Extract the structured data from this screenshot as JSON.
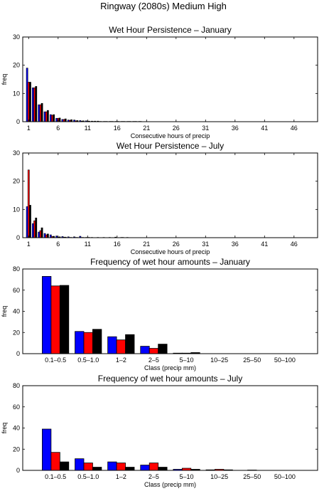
{
  "figure_title": "Ringway (2080s) Medium High",
  "colors": {
    "series1": "#0000ff",
    "series2": "#ff0000",
    "series3": "#000000"
  },
  "chart_data": [
    {
      "type": "bar",
      "title": "Wet Hour Persistence – January",
      "xlabel": "Consecutive hours of precip",
      "ylabel": "freq",
      "xlim": [
        0,
        50
      ],
      "ylim": [
        0,
        30
      ],
      "xticks": [
        1,
        6,
        11,
        16,
        21,
        26,
        31,
        36,
        41,
        46
      ],
      "yticks": [
        0,
        10,
        20,
        30
      ],
      "x": [
        1,
        2,
        3,
        4,
        5,
        6,
        7,
        8,
        9,
        10,
        11,
        12,
        13,
        14,
        15,
        16,
        17,
        18,
        19,
        20
      ],
      "series": [
        {
          "values": [
            19,
            12,
            6,
            3.5,
            2.5,
            1.2,
            0.8,
            0.6,
            0.6,
            0.4,
            0.3,
            0.2,
            0.2,
            0.1,
            0.1,
            0.1,
            0.1,
            0.1,
            0.1,
            0.1
          ]
        },
        {
          "values": [
            14,
            12,
            6,
            3.5,
            2.3,
            1.2,
            0.8,
            0.5,
            0.3,
            0.2,
            0.2,
            0.1,
            0.1,
            0.1,
            0.1,
            0.1,
            0.1,
            0.1,
            0.1,
            0.1
          ]
        },
        {
          "values": [
            14,
            12.5,
            6.5,
            4,
            2.5,
            1.3,
            1.0,
            0.7,
            0.4,
            0.3,
            0.2,
            0.2,
            0.1,
            0.1,
            0.1,
            0.1,
            0.1,
            0.1,
            0.1,
            0
          ]
        }
      ]
    },
    {
      "type": "bar",
      "title": "Wet Hour Persistence – July",
      "xlabel": "Consecutive hours of precip",
      "ylabel": "",
      "xlim": [
        0,
        50
      ],
      "ylim": [
        0,
        30
      ],
      "xticks": [
        1,
        6,
        11,
        16,
        21,
        26,
        31,
        36,
        41,
        46
      ],
      "yticks": [
        0,
        10,
        20,
        30
      ],
      "x": [
        1,
        2,
        3,
        4,
        5,
        6,
        7,
        8,
        9,
        10,
        11,
        12,
        13,
        14,
        15,
        16,
        17,
        18
      ],
      "series": [
        {
          "values": [
            11,
            5,
            2,
            1.5,
            1,
            0.6,
            0.4,
            0.3,
            0.3,
            0.5,
            0.1,
            0.1,
            0.1,
            0.1,
            0.1,
            0.2,
            0.1,
            0.1
          ]
        },
        {
          "values": [
            24,
            6,
            2.5,
            1,
            0.4,
            0.2,
            0.2,
            0.1,
            0.1,
            0.1,
            0.1,
            0,
            0,
            0,
            0,
            0,
            0.1,
            0
          ]
        },
        {
          "values": [
            11.5,
            7,
            3.5,
            1.3,
            0.5,
            0.3,
            0.2,
            0.1,
            0.1,
            0.1,
            0.1,
            0,
            0,
            0,
            0,
            0,
            0,
            0
          ]
        }
      ]
    },
    {
      "type": "bar",
      "title": "Frequency of wet hour amounts – January",
      "xlabel": "Class (precip mm)",
      "ylabel": "freq",
      "ylim": [
        0,
        80
      ],
      "yticks": [
        0,
        20,
        40,
        60,
        80
      ],
      "categories": [
        "0.1–0.5",
        "0.5–1.0",
        "1–2",
        "2–5",
        "5–10",
        "10–25",
        "25–50",
        "50–100"
      ],
      "series": [
        {
          "values": [
            73,
            21,
            16,
            7,
            0.5,
            0,
            0,
            0
          ]
        },
        {
          "values": [
            64,
            20,
            13,
            5,
            0.5,
            0,
            0,
            0
          ]
        },
        {
          "values": [
            64.5,
            23,
            18,
            9,
            1,
            0,
            0,
            0
          ]
        }
      ]
    },
    {
      "type": "bar",
      "title": "Frequency of wet hour amounts – July",
      "xlabel": "Class (precip mm)",
      "ylabel": "freq",
      "ylim": [
        0,
        80
      ],
      "yticks": [
        0,
        20,
        40,
        60,
        80
      ],
      "categories": [
        "0.1–0.5",
        "0.5–1.0",
        "1–2",
        "2–5",
        "5–10",
        "10–25",
        "25–50",
        "50–100"
      ],
      "series": [
        {
          "values": [
            39,
            11,
            8,
            5,
            1,
            0.5,
            0,
            0
          ]
        },
        {
          "values": [
            17,
            7,
            7,
            7,
            2,
            1,
            0.3,
            0
          ]
        },
        {
          "values": [
            8,
            3,
            3,
            3,
            1,
            0.5,
            0,
            0
          ]
        }
      ]
    }
  ]
}
